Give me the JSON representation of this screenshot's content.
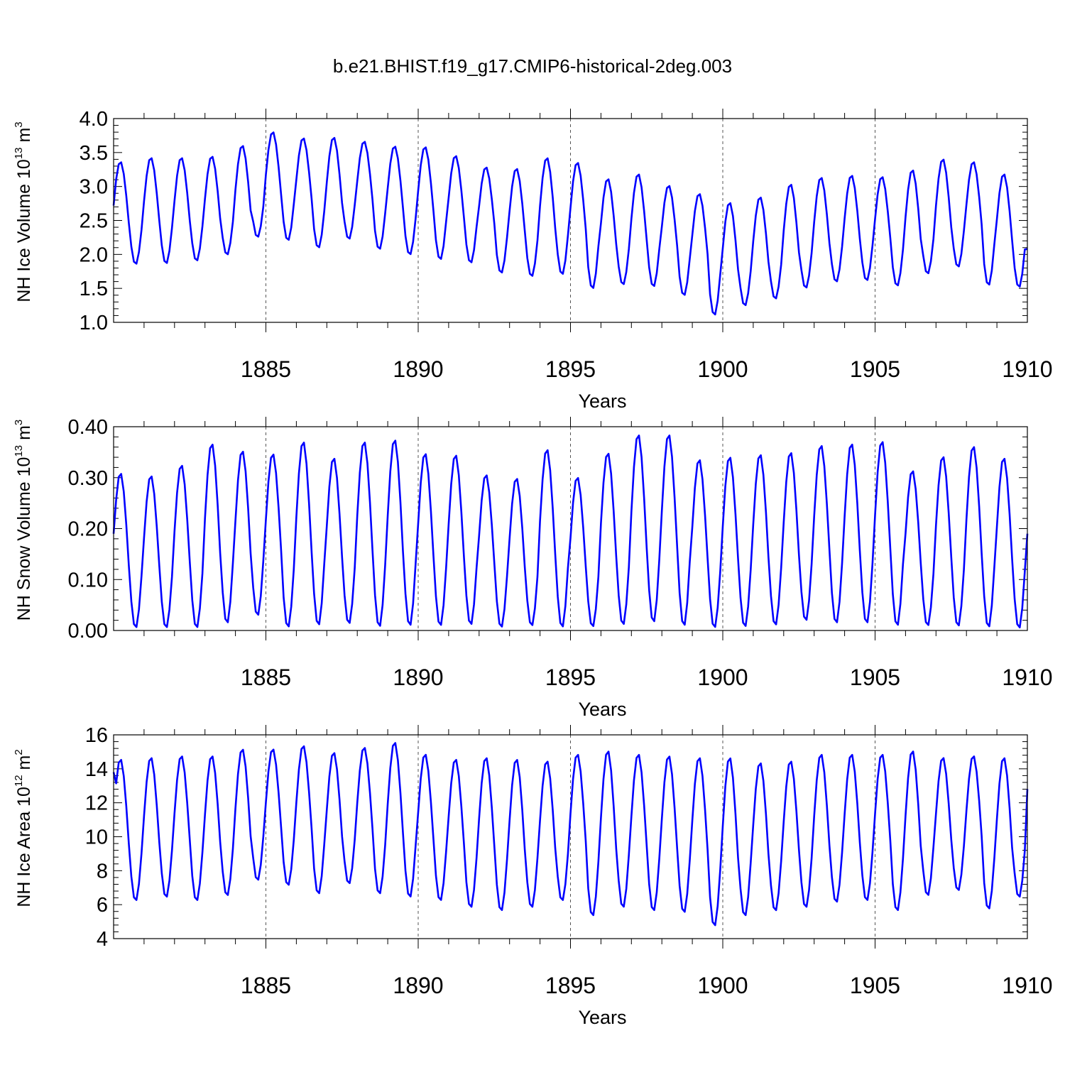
{
  "title": "b.e21.BHIST.f19_g17.CMIP6-historical-2deg.003",
  "colors": {
    "line": "#0000ff",
    "axis": "#000000",
    "grid": "#555555",
    "background": "#ffffff"
  },
  "chart_data": [
    {
      "type": "line",
      "name": "ice-volume",
      "ylabel_main": "NH Ice Volume 10",
      "ylabel_exp": "13",
      "ylabel_unit": " m",
      "ylabel_unit_exp": "3",
      "xlabel": "Years",
      "xlim": [
        1880,
        1910
      ],
      "ylim": [
        1.0,
        4.0
      ],
      "yticks": [
        1.0,
        1.5,
        2.0,
        2.5,
        3.0,
        3.5,
        4.0
      ],
      "ytick_labels": [
        "1.0",
        "1.5",
        "2.0",
        "2.5",
        "3.0",
        "3.5",
        "4.0"
      ],
      "xticks": [
        1885,
        1890,
        1895,
        1900,
        1905,
        1910
      ],
      "xtick_labels": [
        "1885",
        "1890",
        "1895",
        "1900",
        "1905",
        "1910"
      ],
      "series": [
        {
          "name": "NH Ice Volume",
          "annual_max": [
            3.37,
            3.43,
            3.43,
            3.45,
            3.61,
            3.81,
            3.72,
            3.73,
            3.67,
            3.6,
            3.59,
            3.46,
            3.29,
            3.27,
            3.43,
            3.36,
            3.12,
            3.19,
            3.02,
            2.9,
            2.77,
            2.85,
            3.04,
            3.14,
            3.17,
            3.15,
            3.25,
            3.41,
            3.37,
            3.19
          ],
          "annual_min": [
            1.85,
            1.86,
            1.9,
            1.99,
            2.25,
            2.2,
            2.09,
            2.22,
            2.07,
            1.99,
            1.92,
            1.87,
            1.72,
            1.67,
            1.7,
            1.49,
            1.55,
            1.52,
            1.39,
            1.1,
            1.24,
            1.34,
            1.5,
            1.59,
            1.61,
            1.53,
            1.71,
            1.81,
            1.54,
            1.51
          ],
          "start_value": 2.72,
          "end_value": 2.08
        }
      ]
    },
    {
      "type": "line",
      "name": "snow-volume",
      "ylabel_main": "NH Snow Volume 10",
      "ylabel_exp": "13",
      "ylabel_unit": " m",
      "ylabel_unit_exp": "3",
      "xlabel": "Years",
      "xlim": [
        1880,
        1910
      ],
      "ylim": [
        0.0,
        0.4
      ],
      "yticks": [
        0.0,
        0.1,
        0.2,
        0.3,
        0.4
      ],
      "ytick_labels": [
        "0.00",
        "0.10",
        "0.20",
        "0.30",
        "0.40"
      ],
      "xticks": [
        1885,
        1890,
        1895,
        1900,
        1905,
        1910
      ],
      "xtick_labels": [
        "1885",
        "1890",
        "1895",
        "1900",
        "1905",
        "1910"
      ],
      "series": [
        {
          "name": "NH Snow Volume",
          "annual_max": [
            0.31,
            0.305,
            0.326,
            0.368,
            0.354,
            0.348,
            0.372,
            0.34,
            0.372,
            0.376,
            0.349,
            0.346,
            0.307,
            0.3,
            0.357,
            0.302,
            0.35,
            0.386,
            0.386,
            0.337,
            0.342,
            0.347,
            0.351,
            0.365,
            0.368,
            0.373,
            0.315,
            0.343,
            0.363,
            0.34
          ],
          "annual_min": [
            0.004,
            0.004,
            0.004,
            0.013,
            0.028,
            0.005,
            0.009,
            0.012,
            0.006,
            0.008,
            0.008,
            0.01,
            0.005,
            0.008,
            0.005,
            0.006,
            0.01,
            0.015,
            0.008,
            0.004,
            0.006,
            0.009,
            0.018,
            0.013,
            0.013,
            0.008,
            0.008,
            0.007,
            0.005,
            0.003
          ],
          "start_value": 0.19,
          "end_value": 0.19
        }
      ]
    },
    {
      "type": "line",
      "name": "ice-area",
      "ylabel_main": "NH Ice Area 10",
      "ylabel_exp": "12",
      "ylabel_unit": " m",
      "ylabel_unit_exp": "2",
      "xlabel": "Years",
      "xlim": [
        1880,
        1910
      ],
      "ylim": [
        4,
        16
      ],
      "yticks": [
        4,
        6,
        8,
        10,
        12,
        14,
        16
      ],
      "ytick_labels": [
        "4",
        "6",
        "8",
        "10",
        "12",
        "14",
        "16"
      ],
      "xticks": [
        1885,
        1890,
        1895,
        1900,
        1905,
        1910
      ],
      "xtick_labels": [
        "1885",
        "1890",
        "1895",
        "1900",
        "1905",
        "1910"
      ],
      "series": [
        {
          "name": "NH Ice Area",
          "annual_max": [
            14.6,
            14.7,
            14.8,
            14.8,
            15.2,
            15.2,
            15.4,
            15.0,
            15.3,
            15.6,
            14.9,
            14.6,
            14.7,
            14.6,
            14.5,
            14.9,
            15.1,
            14.9,
            14.8,
            14.7,
            14.7,
            14.4,
            14.5,
            14.9,
            14.9,
            14.9,
            15.1,
            14.7,
            14.8,
            14.7
          ],
          "annual_min": [
            6.2,
            6.4,
            6.2,
            6.5,
            7.4,
            7.1,
            6.6,
            7.2,
            6.6,
            6.4,
            6.2,
            5.8,
            5.6,
            5.8,
            6.2,
            5.3,
            5.8,
            5.6,
            5.5,
            4.7,
            5.3,
            5.6,
            5.8,
            6.1,
            6.2,
            5.6,
            6.5,
            6.8,
            5.7,
            6.4
          ],
          "start_value": 13.8,
          "end_value": 12.8
        }
      ]
    }
  ]
}
